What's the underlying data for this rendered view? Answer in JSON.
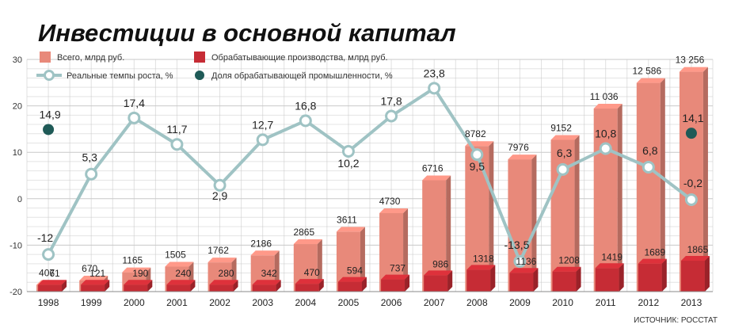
{
  "chart_data": {
    "type": "bar",
    "title": "Инвестиции в основной капитал",
    "source": "ИСТОЧНИК: РОССТАТ",
    "categories": [
      "1998",
      "1999",
      "2000",
      "2001",
      "2002",
      "2003",
      "2004",
      "2005",
      "2006",
      "2007",
      "2008",
      "2009",
      "2010",
      "2011",
      "2012",
      "2013"
    ],
    "series": [
      {
        "name": "Всего, млрд руб.",
        "kind": "bar",
        "axis": "right",
        "values": [
          407,
          670,
          1165,
          1505,
          1762,
          2186,
          2865,
          3611,
          4730,
          6716,
          8782,
          7976,
          9152,
          11036,
          12586,
          13256
        ],
        "labels": [
          "407",
          "670",
          "1165",
          "1505",
          "1762",
          "2186",
          "2865",
          "3611",
          "4730",
          "6716",
          "8782",
          "7976",
          "9152",
          "11 036",
          "12 586",
          "13 256"
        ],
        "color": "#e8897a"
      },
      {
        "name": "Обрабатывающие производства, млрд руб.",
        "kind": "bar",
        "axis": "right",
        "values": [
          61,
          121,
          190,
          240,
          280,
          342,
          470,
          594,
          737,
          986,
          1318,
          1136,
          1208,
          1419,
          1689,
          1865
        ],
        "labels": [
          "61",
          "121",
          "190",
          "240",
          "280",
          "342",
          "470",
          "594",
          "737",
          "986",
          "1318",
          "1136",
          "1208",
          "1419",
          "1689",
          "1865"
        ],
        "color": "#c62c35"
      },
      {
        "name": "Реальные темпы роста, %",
        "kind": "line",
        "axis": "left",
        "values": [
          -12,
          5.3,
          17.4,
          11.7,
          2.9,
          12.7,
          16.8,
          10.2,
          17.8,
          23.8,
          9.5,
          -13.5,
          6.3,
          10.8,
          6.8,
          -0.2
        ],
        "labels": [
          "-12",
          "5,3",
          "17,4",
          "11,7",
          "2,9",
          "12,7",
          "16,8",
          "10,2",
          "17,8",
          "23,8",
          "9,5",
          "-13,5",
          "6,3",
          "10,8",
          "6,8",
          "-0,2"
        ],
        "color": "#9fc3c4"
      },
      {
        "name": "Доля обрабатывающей промышленности, %",
        "kind": "scatter",
        "axis": "left",
        "points": [
          {
            "x": "1998",
            "y": 14.9,
            "label": "14,9"
          },
          {
            "x": "2013",
            "y": 14.1,
            "label": "14,1"
          }
        ],
        "color": "#1f5a57"
      }
    ],
    "yticks": [
      "30",
      "20",
      "10",
      "0",
      "-10",
      "-20"
    ],
    "ylim": [
      -20,
      30
    ],
    "grid": true,
    "legend": "top-left"
  }
}
